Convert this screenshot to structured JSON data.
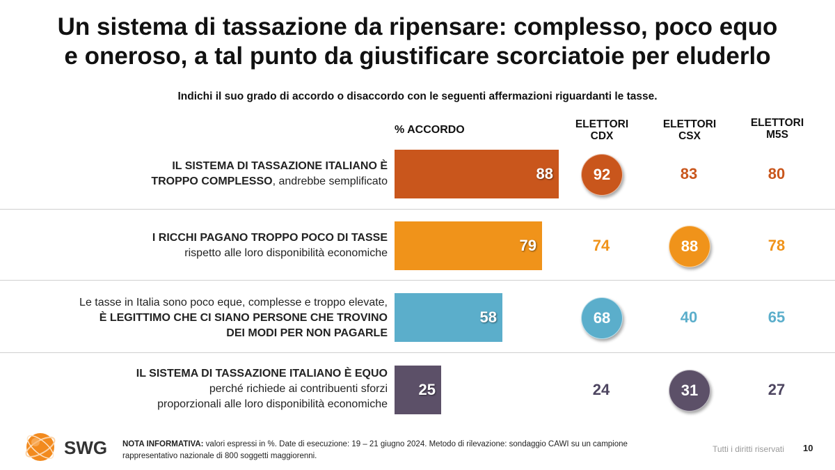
{
  "title": {
    "line1": "Un sistema di tassazione da ripensare: complesso, poco equo",
    "line2": "e oneroso, a tal punto da giustificare scorciatoie per eluderlo"
  },
  "subtitle": "Indichi il suo grado di accordo o disaccordo con le seguenti affermazioni riguardanti le tasse.",
  "headers": {
    "accordo": "% ACCORDO",
    "cdx_1": "ELETTORI",
    "cdx_2": "CDX",
    "csx_1": "ELETTORI",
    "csx_2": "CSX",
    "m5s_1": "ELETTORI",
    "m5s_2": "M5S"
  },
  "rows": [
    {
      "l1_bold": "IL SISTEMA DI TASSAZIONE ITALIANO È",
      "l2_bold": "TROPPO COMPLESSO",
      "l2_normal": ", andrebbe semplificato"
    },
    {
      "l1_bold": "I RICCHI PAGANO TROPPO POCO DI TASSE",
      "l2_normal": "rispetto alle loro disponibilità economiche"
    },
    {
      "l1_normal": "Le tasse in Italia sono poco eque, complesse e troppo elevate,",
      "l2_bold": "È LEGITTIMO CHE CI SIANO PERSONE CHE TROVINO",
      "l3_bold": "DEI MODI PER NON PAGARLE"
    },
    {
      "l1_bold": "IL SISTEMA DI TASSAZIONE ITALIANO È EQUO",
      "l2_normal": "perché richiede ai contribuenti sforzi",
      "l3_normal": "proporzionali alle loro disponibilità economiche"
    }
  ],
  "chart_data": {
    "type": "bar",
    "title": "Un sistema di tassazione da ripensare: complesso, poco equo e oneroso, a tal punto da giustificare scorciatoie per eluderlo",
    "xlabel": "% ACCORDO",
    "ylabel": "",
    "categories": [
      "IL SISTEMA DI TASSAZIONE ITALIANO È TROPPO COMPLESSO, andrebbe semplificato",
      "I RICCHI PAGANO TROPPO POCO DI TASSE rispetto alle loro disponibilità economiche",
      "Le tasse in Italia sono poco eque, complesse e troppo elevate, È LEGITTIMO CHE CI SIANO PERSONE CHE TROVINO DEI MODI PER NON PAGARLE",
      "IL SISTEMA DI TASSAZIONE ITALIANO È EQUO perché richiede ai contribuenti sforzi proporzionali alle loro disponibilità economiche"
    ],
    "values": [
      88,
      79,
      58,
      25
    ],
    "series": [
      {
        "name": "% ACCORDO",
        "values": [
          88,
          79,
          58,
          25
        ]
      },
      {
        "name": "ELETTORI CDX",
        "values": [
          92,
          74,
          68,
          24
        ]
      },
      {
        "name": "ELETTORI CSX",
        "values": [
          83,
          88,
          40,
          31
        ]
      },
      {
        "name": "ELETTORI M5S",
        "values": [
          80,
          78,
          65,
          27
        ]
      }
    ],
    "highlighted_max": [
      "cdx",
      "csx",
      "cdx",
      "csx"
    ],
    "colors": [
      "#c9561c",
      "#f0931a",
      "#5baecb",
      "#5c5068"
    ],
    "xlim": [
      0,
      100
    ]
  },
  "footer": {
    "note_label": "NOTA INFORMATIVA:",
    "note_line1": " valori espressi in %. Date di esecuzione: 19 – 21 giugno 2024. Metodo di rilevazione: sondaggio CAWI su un campione",
    "note_line2": "rappresentativo nazionale di 800 soggetti maggiorenni.",
    "rights": "Tutti i diritti riservati",
    "page": "10",
    "brand": "SWG",
    "brand_color": "#f28a1e"
  }
}
